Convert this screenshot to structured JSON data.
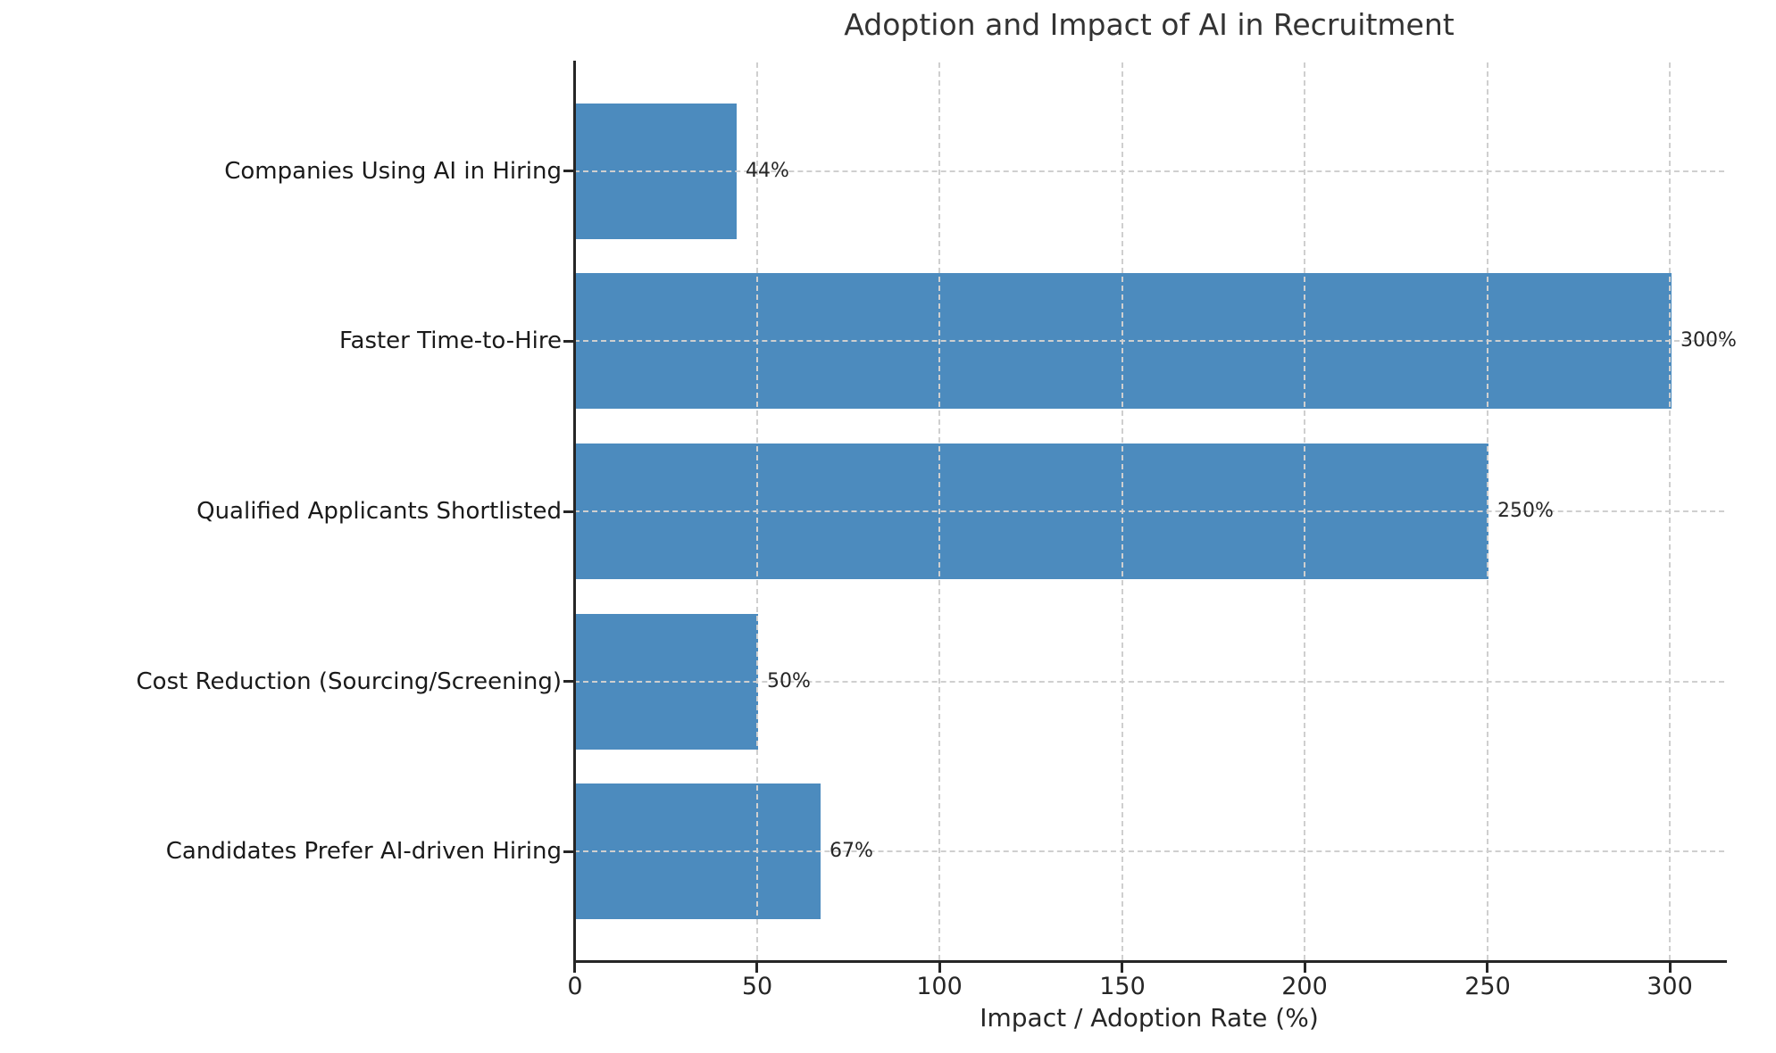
{
  "chart_data": {
    "type": "bar",
    "orientation": "horizontal",
    "title": "Adoption and Impact of AI in Recruitment",
    "xlabel": "Impact / Adoption Rate (%)",
    "ylabel": "",
    "categories": [
      "Companies Using AI in Hiring",
      "Faster Time-to-Hire",
      "Qualified Applicants Shortlisted",
      "Cost Reduction (Sourcing/Screening)",
      "Candidates Prefer AI-driven Hiring"
    ],
    "values": [
      44,
      300,
      250,
      50,
      67
    ],
    "value_labels": [
      "44%",
      "300%",
      "250%",
      "50%",
      "67%"
    ],
    "xticks": [
      "0",
      "50",
      "100",
      "150",
      "200",
      "250",
      "300"
    ],
    "xtick_values": [
      0,
      50,
      100,
      150,
      200,
      250,
      300
    ],
    "xlim": [
      0,
      315
    ],
    "grid": "both-dashed",
    "legend": "none",
    "bar_color": "#4C8BBE",
    "text_color": "#262626",
    "title_color": "#333333",
    "grid_color": "#cfcfcf",
    "axis_color": "#262626",
    "background_color": "#ffffff"
  }
}
